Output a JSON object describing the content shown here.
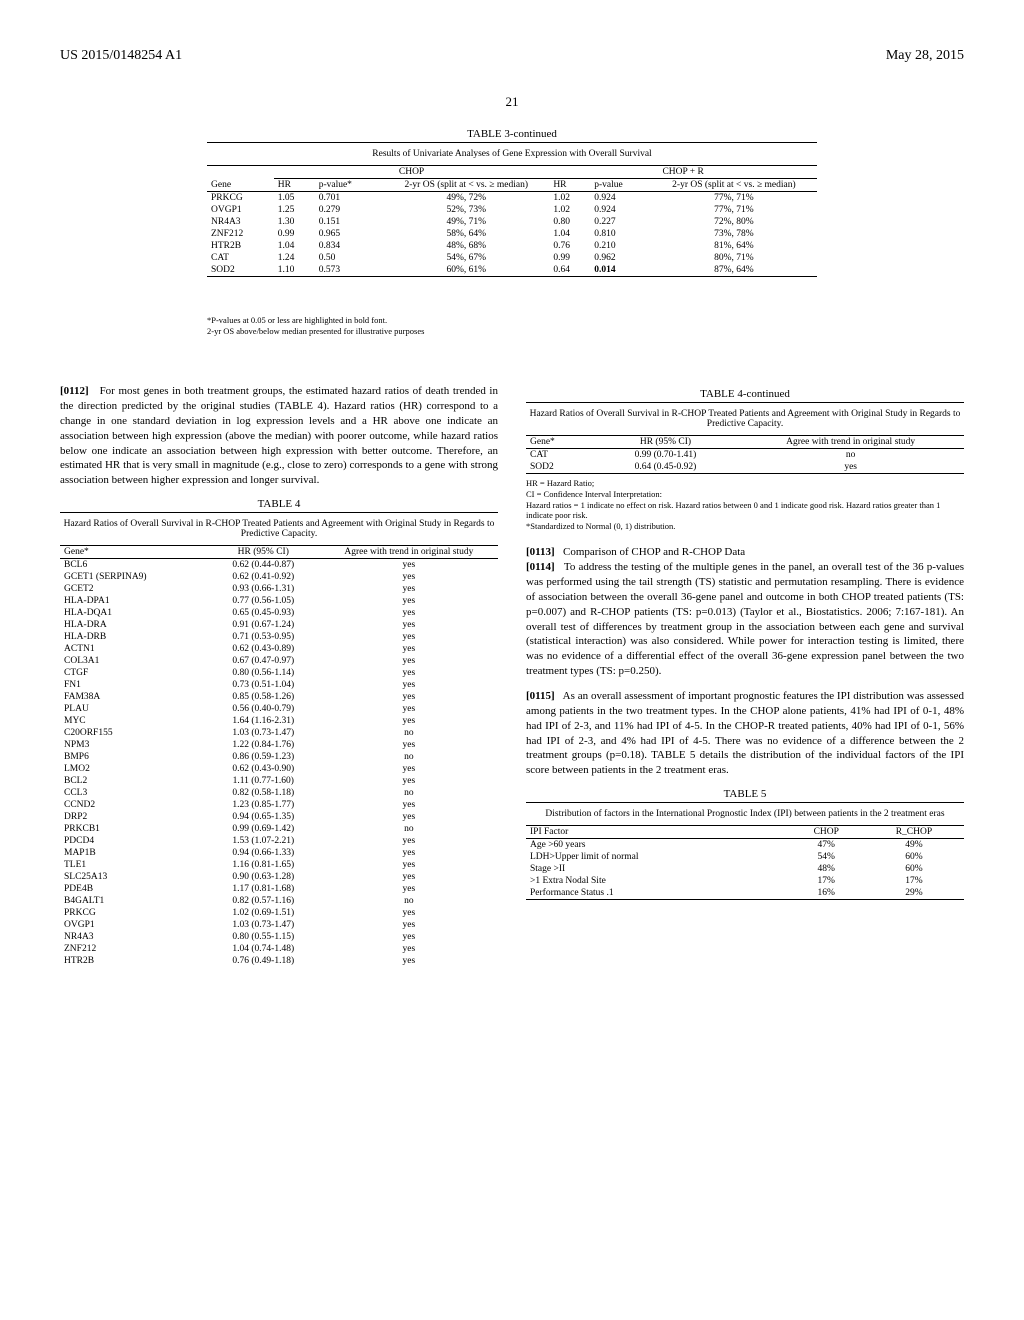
{
  "header": {
    "doc_id": "US 2015/0148254 A1",
    "date": "May 28, 2015",
    "page_num": "21"
  },
  "table3": {
    "title": "TABLE 3-continued",
    "caption": "Results of Univariate Analyses of Gene Expression with Overall Survival",
    "groups": {
      "left": "CHOP",
      "right": "CHOP + R"
    },
    "columns": [
      "Gene",
      "HR",
      "p-value*",
      "2-yr OS (split at < vs. ≥ median)",
      "HR",
      "p-value",
      "2-yr OS (split at < vs. ≥ median)"
    ],
    "rows": [
      {
        "gene": "PRKCG",
        "hr1": "1.05",
        "p1": "0.701",
        "os1": "49%, 72%",
        "hr2": "1.02",
        "p2": "0.924",
        "os2": "77%, 71%"
      },
      {
        "gene": "OVGP1",
        "hr1": "1.25",
        "p1": "0.279",
        "os1": "52%, 73%",
        "hr2": "1.02",
        "p2": "0.924",
        "os2": "77%, 71%"
      },
      {
        "gene": "NR4A3",
        "hr1": "1.30",
        "p1": "0.151",
        "os1": "49%, 71%",
        "hr2": "0.80",
        "p2": "0.227",
        "os2": "72%, 80%"
      },
      {
        "gene": "ZNF212",
        "hr1": "0.99",
        "p1": "0.965",
        "os1": "58%, 64%",
        "hr2": "1.04",
        "p2": "0.810",
        "os2": "73%, 78%"
      },
      {
        "gene": "HTR2B",
        "hr1": "1.04",
        "p1": "0.834",
        "os1": "48%, 68%",
        "hr2": "0.76",
        "p2": "0.210",
        "os2": "81%, 64%"
      },
      {
        "gene": "CAT",
        "hr1": "1.24",
        "p1": "0.50",
        "os1": "54%, 67%",
        "hr2": "0.99",
        "p2": "0.962",
        "os2": "80%, 71%"
      },
      {
        "gene": "SOD2",
        "hr1": "1.10",
        "p1": "0.573",
        "os1": "60%, 61%",
        "hr2": "0.64",
        "p2": "0.014",
        "os2": "87%, 64%",
        "bold": true
      }
    ],
    "footnotes": [
      "*P-values at 0.05 or less are highlighted in bold font.",
      "2-yr OS above/below median presented for illustrative purposes"
    ]
  },
  "para112": {
    "num": "[0112]",
    "text": "For most genes in both treatment groups, the estimated hazard ratios of death trended in the direction predicted by the original studies (TABLE 4). Hazard ratios (HR) correspond to a change in one standard deviation in log expression levels and a HR above one indicate an association between high expression (above the median) with poorer outcome, while hazard ratios below one indicate an association between high expression with better outcome. Therefore, an estimated HR that is very small in magnitude (e.g., close to zero) corresponds to a gene with strong association between higher expression and longer survival."
  },
  "table4": {
    "title": "TABLE 4",
    "caption": "Hazard Ratios of Overall Survival in R-CHOP Treated Patients and Agreement with Original Study in Regards to Predictive Capacity.",
    "columns": [
      "Gene*",
      "HR (95% CI)",
      "Agree with trend in original study"
    ],
    "rows": [
      {
        "g": "BCL6",
        "hr": "0.62 (0.44-0.87)",
        "a": "yes"
      },
      {
        "g": "GCET1 (SERPINA9)",
        "hr": "0.62 (0.41-0.92)",
        "a": "yes"
      },
      {
        "g": "GCET2",
        "hr": "0.93 (0.66-1.31)",
        "a": "yes"
      },
      {
        "g": "HLA-DPA1",
        "hr": "0.77 (0.56-1.05)",
        "a": "yes"
      },
      {
        "g": "HLA-DQA1",
        "hr": "0.65 (0.45-0.93)",
        "a": "yes"
      },
      {
        "g": "HLA-DRA",
        "hr": "0.91 (0.67-1.24)",
        "a": "yes"
      },
      {
        "g": "HLA-DRB",
        "hr": "0.71 (0.53-0.95)",
        "a": "yes"
      },
      {
        "g": "ACTN1",
        "hr": "0.62 (0.43-0.89)",
        "a": "yes"
      },
      {
        "g": "COL3A1",
        "hr": "0.67 (0.47-0.97)",
        "a": "yes"
      },
      {
        "g": "CTGF",
        "hr": "0.80 (0.56-1.14)",
        "a": "yes"
      },
      {
        "g": "FN1",
        "hr": "0.73 (0.51-1.04)",
        "a": "yes"
      },
      {
        "g": "FAM38A",
        "hr": "0.85 (0.58-1.26)",
        "a": "yes"
      },
      {
        "g": "PLAU",
        "hr": "0.56 (0.40-0.79)",
        "a": "yes"
      },
      {
        "g": "MYC",
        "hr": "1.64 (1.16-2.31)",
        "a": "yes"
      },
      {
        "g": "C20ORF155",
        "hr": "1.03 (0.73-1.47)",
        "a": "no"
      },
      {
        "g": "NPM3",
        "hr": "1.22 (0.84-1.76)",
        "a": "yes"
      },
      {
        "g": "BMP6",
        "hr": "0.86 (0.59-1.23)",
        "a": "no"
      },
      {
        "g": "LMO2",
        "hr": "0.62 (0.43-0.90)",
        "a": "yes"
      },
      {
        "g": "BCL2",
        "hr": "1.11 (0.77-1.60)",
        "a": "yes"
      },
      {
        "g": "CCL3",
        "hr": "0.82 (0.58-1.18)",
        "a": "no"
      },
      {
        "g": "CCND2",
        "hr": "1.23 (0.85-1.77)",
        "a": "yes"
      },
      {
        "g": "DRP2",
        "hr": "0.94 (0.65-1.35)",
        "a": "yes"
      },
      {
        "g": "PRKCB1",
        "hr": "0.99 (0.69-1.42)",
        "a": "no"
      },
      {
        "g": "PDCD4",
        "hr": "1.53 (1.07-2.21)",
        "a": "yes"
      },
      {
        "g": "MAP1B",
        "hr": "0.94 (0.66-1.33)",
        "a": "yes"
      },
      {
        "g": "TLE1",
        "hr": "1.16 (0.81-1.65)",
        "a": "yes"
      },
      {
        "g": "SLC25A13",
        "hr": "0.90 (0.63-1.28)",
        "a": "yes"
      },
      {
        "g": "PDE4B",
        "hr": "1.17 (0.81-1.68)",
        "a": "yes"
      },
      {
        "g": "B4GALT1",
        "hr": "0.82 (0.57-1.16)",
        "a": "no"
      },
      {
        "g": "PRKCG",
        "hr": "1.02 (0.69-1.51)",
        "a": "yes"
      },
      {
        "g": "OVGP1",
        "hr": "1.03 (0.73-1.47)",
        "a": "yes"
      },
      {
        "g": "NR4A3",
        "hr": "0.80 (0.55-1.15)",
        "a": "yes"
      },
      {
        "g": "ZNF212",
        "hr": "1.04 (0.74-1.48)",
        "a": "yes"
      },
      {
        "g": "HTR2B",
        "hr": "0.76 (0.49-1.18)",
        "a": "yes"
      }
    ]
  },
  "table4cont": {
    "title": "TABLE 4-continued",
    "caption": "Hazard Ratios of Overall Survival in R-CHOP Treated Patients and Agreement with Original Study in Regards to Predictive Capacity.",
    "columns": [
      "Gene*",
      "HR (95% CI)",
      "Agree with trend in original study"
    ],
    "rows": [
      {
        "g": "CAT",
        "hr": "0.99 (0.70-1.41)",
        "a": "no"
      },
      {
        "g": "SOD2",
        "hr": "0.64 (0.45-0.92)",
        "a": "yes"
      }
    ],
    "footnotes": [
      "HR = Hazard Ratio;",
      "CI = Confidence Interval Interpretation:",
      "Hazard ratios = 1 indicate no effect on risk. Hazard ratios between 0 and 1 indicate good risk. Hazard ratios greater than 1 indicate poor risk.",
      "*Standardized to Normal (0, 1) distribution."
    ]
  },
  "para113": {
    "num": "[0113]",
    "text": "Comparison of CHOP and R-CHOP Data"
  },
  "para114": {
    "num": "[0114]",
    "text": "To address the testing of the multiple genes in the panel, an overall test of the 36 p-values was performed using the tail strength (TS) statistic and permutation resampling. There is evidence of association between the overall 36-gene panel and outcome in both CHOP treated patients (TS: p=0.007) and R-CHOP patients (TS: p=0.013) (Taylor et al., Biostatistics. 2006; 7:167-181). An overall test of differences by treatment group in the association between each gene and survival (statistical interaction) was also considered. While power for interaction testing is limited, there was no evidence of a differential effect of the overall 36-gene expression panel between the two treatment types (TS: p=0.250)."
  },
  "para115": {
    "num": "[0115]",
    "text": "As an overall assessment of important prognostic features the IPI distribution was assessed among patients in the two treatment types. In the CHOP alone patients, 41% had IPI of 0-1, 48% had IPI of 2-3, and 11% had IPI of 4-5. In the CHOP-R treated patients, 40% had IPI of 0-1, 56% had IPI of 2-3, and 4% had IPI of 4-5. There was no evidence of a difference between the 2 treatment groups (p=0.18). TABLE 5 details the distribution of the individual factors of the IPI score between patients in the 2 treatment eras."
  },
  "table5": {
    "title": "TABLE 5",
    "caption": "Distribution of factors in the International Prognostic Index (IPI) between patients in the 2 treatment eras",
    "columns": [
      "IPI Factor",
      "CHOP",
      "R_CHOP"
    ],
    "rows": [
      {
        "f": "Age >60 years",
        "c": "47%",
        "r": "49%"
      },
      {
        "f": "LDH>Upper limit of normal",
        "c": "54%",
        "r": "60%"
      },
      {
        "f": "Stage >II",
        "c": "48%",
        "r": "60%"
      },
      {
        "f": ">1 Extra Nodal Site",
        "c": "17%",
        "r": "17%"
      },
      {
        "f": "Performance Status .1",
        "c": "16%",
        "r": "29%"
      }
    ]
  }
}
